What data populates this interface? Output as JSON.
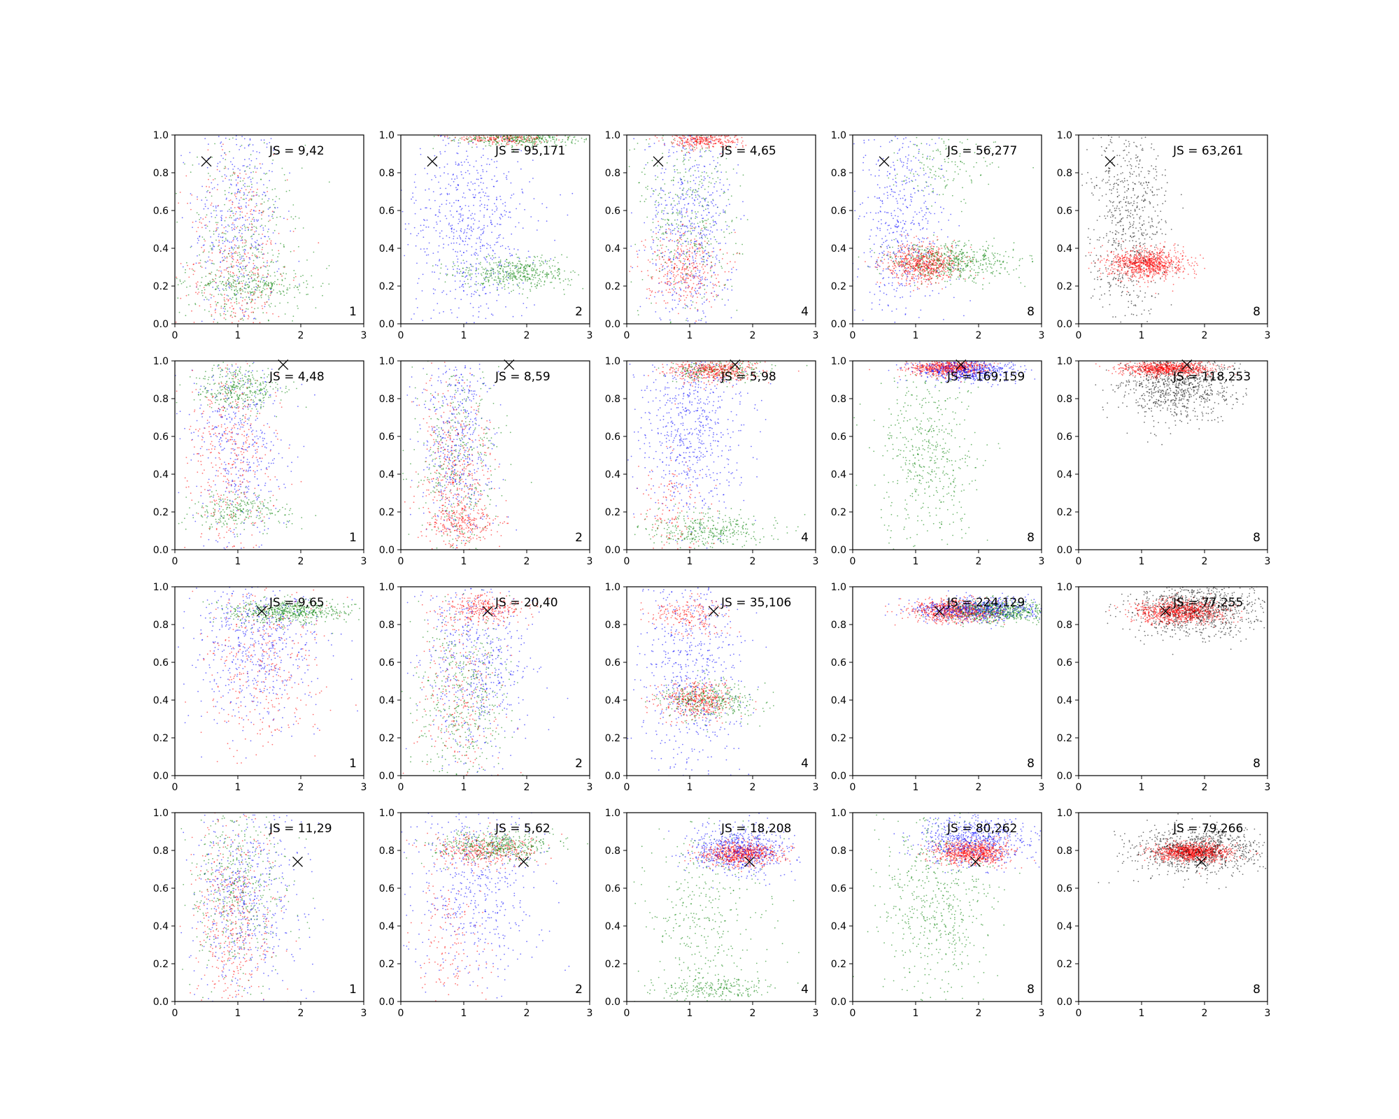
{
  "colors": {
    "blue": "#0000ff",
    "green": "#008000",
    "red": "#ff0000",
    "black": "#000000"
  },
  "chart_data": {
    "type": "scatter",
    "grid": false,
    "layout": "4 rows x 5 columns of scatter panels",
    "xlim": [
      0,
      3
    ],
    "ylim": [
      0,
      1
    ],
    "x_ticks": [
      "0",
      "1",
      "2",
      "3"
    ],
    "y_ticks": [
      "0.0",
      "0.2",
      "0.4",
      "0.6",
      "0.8",
      "1.0"
    ],
    "panels": [
      {
        "row": 1,
        "col": 1,
        "label": "1",
        "js": "JS = 9,42",
        "marker": [
          0.5,
          0.86
        ],
        "series_colors": [
          "blue",
          "green",
          "red"
        ],
        "clusters": [
          {
            "color": "blue",
            "cx": 1.0,
            "cy": 0.55,
            "sx": 0.35,
            "sy": 0.3,
            "n": 420
          },
          {
            "color": "green",
            "cx": 1.1,
            "cy": 0.35,
            "sx": 0.45,
            "sy": 0.3,
            "n": 420
          },
          {
            "color": "red",
            "cx": 1.0,
            "cy": 0.3,
            "sx": 0.4,
            "sy": 0.3,
            "n": 420
          },
          {
            "color": "green",
            "cx": 1.2,
            "cy": 0.2,
            "sx": 0.5,
            "sy": 0.04,
            "n": 250
          }
        ]
      },
      {
        "row": 1,
        "col": 2,
        "label": "2",
        "js": "JS = 95,171",
        "marker": [
          0.5,
          0.86
        ],
        "series_colors": [
          "blue",
          "green",
          "red"
        ],
        "clusters": [
          {
            "color": "blue",
            "cx": 1.1,
            "cy": 0.5,
            "sx": 0.5,
            "sy": 0.3,
            "n": 700
          },
          {
            "color": "green",
            "cx": 1.8,
            "cy": 0.27,
            "sx": 0.45,
            "sy": 0.04,
            "n": 450
          },
          {
            "color": "green",
            "cx": 1.9,
            "cy": 0.98,
            "sx": 0.45,
            "sy": 0.02,
            "n": 350
          },
          {
            "color": "red",
            "cx": 1.6,
            "cy": 0.98,
            "sx": 0.4,
            "sy": 0.015,
            "n": 200
          }
        ]
      },
      {
        "row": 1,
        "col": 3,
        "label": "4",
        "js": "JS = 4,65",
        "marker": [
          0.5,
          0.86
        ],
        "series_colors": [
          "blue",
          "green",
          "red"
        ],
        "clusters": [
          {
            "color": "blue",
            "cx": 1.0,
            "cy": 0.5,
            "sx": 0.35,
            "sy": 0.3,
            "n": 600
          },
          {
            "color": "green",
            "cx": 1.0,
            "cy": 0.6,
            "sx": 0.4,
            "sy": 0.3,
            "n": 400
          },
          {
            "color": "red",
            "cx": 0.9,
            "cy": 0.3,
            "sx": 0.3,
            "sy": 0.1,
            "n": 350
          },
          {
            "color": "red",
            "cx": 1.2,
            "cy": 0.97,
            "sx": 0.3,
            "sy": 0.02,
            "n": 300
          }
        ]
      },
      {
        "row": 1,
        "col": 4,
        "label": "8",
        "js": "JS = 56,277",
        "marker": [
          0.5,
          0.86
        ],
        "series_colors": [
          "blue",
          "green",
          "red"
        ],
        "clusters": [
          {
            "color": "blue",
            "cx": 0.8,
            "cy": 0.55,
            "sx": 0.35,
            "sy": 0.3,
            "n": 550
          },
          {
            "color": "green",
            "cx": 1.6,
            "cy": 0.33,
            "sx": 0.5,
            "sy": 0.05,
            "n": 550
          },
          {
            "color": "green",
            "cx": 1.5,
            "cy": 0.85,
            "sx": 0.4,
            "sy": 0.1,
            "n": 150
          },
          {
            "color": "red",
            "cx": 1.1,
            "cy": 0.32,
            "sx": 0.3,
            "sy": 0.05,
            "n": 650
          }
        ]
      },
      {
        "row": 1,
        "col": 5,
        "label": "8",
        "js": "JS = 63,261",
        "marker": [
          0.5,
          0.86
        ],
        "series_colors": [
          "black",
          "red"
        ],
        "clusters": [
          {
            "color": "black",
            "cx": 0.8,
            "cy": 0.55,
            "sx": 0.3,
            "sy": 0.3,
            "n": 700
          },
          {
            "color": "red",
            "cx": 1.1,
            "cy": 0.32,
            "sx": 0.3,
            "sy": 0.04,
            "n": 900
          }
        ]
      },
      {
        "row": 2,
        "col": 1,
        "label": "1",
        "js": "JS = 4,48",
        "marker": [
          1.72,
          0.98
        ],
        "series_colors": [
          "blue",
          "green",
          "red"
        ],
        "clusters": [
          {
            "color": "blue",
            "cx": 1.0,
            "cy": 0.55,
            "sx": 0.4,
            "sy": 0.3,
            "n": 450
          },
          {
            "color": "green",
            "cx": 1.0,
            "cy": 0.85,
            "sx": 0.35,
            "sy": 0.06,
            "n": 350
          },
          {
            "color": "green",
            "cx": 1.0,
            "cy": 0.2,
            "sx": 0.4,
            "sy": 0.05,
            "n": 250
          },
          {
            "color": "red",
            "cx": 0.9,
            "cy": 0.5,
            "sx": 0.35,
            "sy": 0.3,
            "n": 400
          }
        ]
      },
      {
        "row": 2,
        "col": 2,
        "label": "2",
        "js": "JS = 8,59",
        "marker": [
          1.72,
          0.98
        ],
        "series_colors": [
          "blue",
          "green",
          "red"
        ],
        "clusters": [
          {
            "color": "blue",
            "cx": 0.9,
            "cy": 0.55,
            "sx": 0.3,
            "sy": 0.3,
            "n": 500
          },
          {
            "color": "green",
            "cx": 0.9,
            "cy": 0.45,
            "sx": 0.35,
            "sy": 0.3,
            "n": 400
          },
          {
            "color": "red",
            "cx": 0.9,
            "cy": 0.35,
            "sx": 0.3,
            "sy": 0.25,
            "n": 450
          },
          {
            "color": "red",
            "cx": 1.0,
            "cy": 0.15,
            "sx": 0.3,
            "sy": 0.05,
            "n": 200
          }
        ]
      },
      {
        "row": 2,
        "col": 3,
        "label": "4",
        "js": "JS = 5,98",
        "marker": [
          1.72,
          0.98
        ],
        "series_colors": [
          "blue",
          "green",
          "red"
        ],
        "clusters": [
          {
            "color": "blue",
            "cx": 1.0,
            "cy": 0.65,
            "sx": 0.4,
            "sy": 0.25,
            "n": 700
          },
          {
            "color": "green",
            "cx": 1.3,
            "cy": 0.1,
            "sx": 0.5,
            "sy": 0.05,
            "n": 350
          },
          {
            "color": "green",
            "cx": 1.4,
            "cy": 0.95,
            "sx": 0.4,
            "sy": 0.03,
            "n": 200
          },
          {
            "color": "red",
            "cx": 1.4,
            "cy": 0.95,
            "sx": 0.35,
            "sy": 0.03,
            "n": 500
          },
          {
            "color": "red",
            "cx": 0.7,
            "cy": 0.2,
            "sx": 0.3,
            "sy": 0.15,
            "n": 150
          }
        ]
      },
      {
        "row": 2,
        "col": 4,
        "label": "8",
        "js": "JS = 169,159",
        "marker": [
          1.72,
          0.98
        ],
        "series_colors": [
          "blue",
          "green",
          "red"
        ],
        "clusters": [
          {
            "color": "blue",
            "cx": 1.8,
            "cy": 0.95,
            "sx": 0.4,
            "sy": 0.03,
            "n": 600
          },
          {
            "color": "green",
            "cx": 1.2,
            "cy": 0.5,
            "sx": 0.4,
            "sy": 0.25,
            "n": 500
          },
          {
            "color": "red",
            "cx": 1.5,
            "cy": 0.96,
            "sx": 0.3,
            "sy": 0.02,
            "n": 600
          }
        ]
      },
      {
        "row": 2,
        "col": 5,
        "label": "8",
        "js": "JS = 118,253",
        "marker": [
          1.72,
          0.98
        ],
        "series_colors": [
          "black",
          "red"
        ],
        "clusters": [
          {
            "color": "black",
            "cx": 1.6,
            "cy": 0.88,
            "sx": 0.45,
            "sy": 0.1,
            "n": 900
          },
          {
            "color": "red",
            "cx": 1.4,
            "cy": 0.96,
            "sx": 0.35,
            "sy": 0.02,
            "n": 800
          }
        ]
      },
      {
        "row": 3,
        "col": 1,
        "label": "1",
        "js": "JS = 9,65",
        "marker": [
          1.38,
          0.87
        ],
        "series_colors": [
          "blue",
          "green",
          "red"
        ],
        "clusters": [
          {
            "color": "blue",
            "cx": 1.3,
            "cy": 0.7,
            "sx": 0.5,
            "sy": 0.2,
            "n": 600
          },
          {
            "color": "green",
            "cx": 1.8,
            "cy": 0.87,
            "sx": 0.45,
            "sy": 0.03,
            "n": 550
          },
          {
            "color": "red",
            "cx": 1.4,
            "cy": 0.6,
            "sx": 0.5,
            "sy": 0.25,
            "n": 350
          }
        ]
      },
      {
        "row": 3,
        "col": 2,
        "label": "2",
        "js": "JS = 20,40",
        "marker": [
          1.38,
          0.87
        ],
        "series_colors": [
          "blue",
          "green",
          "red"
        ],
        "clusters": [
          {
            "color": "blue",
            "cx": 1.2,
            "cy": 0.6,
            "sx": 0.45,
            "sy": 0.25,
            "n": 550
          },
          {
            "color": "green",
            "cx": 1.0,
            "cy": 0.4,
            "sx": 0.4,
            "sy": 0.25,
            "n": 450
          },
          {
            "color": "red",
            "cx": 1.3,
            "cy": 0.88,
            "sx": 0.35,
            "sy": 0.04,
            "n": 300
          },
          {
            "color": "red",
            "cx": 0.9,
            "cy": 0.4,
            "sx": 0.35,
            "sy": 0.25,
            "n": 250
          }
        ]
      },
      {
        "row": 3,
        "col": 3,
        "label": "4",
        "js": "JS = 35,106",
        "marker": [
          1.38,
          0.87
        ],
        "series_colors": [
          "blue",
          "green",
          "red"
        ],
        "clusters": [
          {
            "color": "blue",
            "cx": 1.0,
            "cy": 0.6,
            "sx": 0.4,
            "sy": 0.3,
            "n": 600
          },
          {
            "color": "green",
            "cx": 1.3,
            "cy": 0.4,
            "sx": 0.4,
            "sy": 0.05,
            "n": 350
          },
          {
            "color": "red",
            "cx": 1.1,
            "cy": 0.4,
            "sx": 0.3,
            "sy": 0.05,
            "n": 400
          },
          {
            "color": "red",
            "cx": 1.0,
            "cy": 0.85,
            "sx": 0.3,
            "sy": 0.05,
            "n": 200
          }
        ]
      },
      {
        "row": 3,
        "col": 4,
        "label": "8",
        "js": "JS = 224,129",
        "marker": [
          1.38,
          0.87
        ],
        "series_colors": [
          "blue",
          "green",
          "red"
        ],
        "clusters": [
          {
            "color": "blue",
            "cx": 2.0,
            "cy": 0.88,
            "sx": 0.5,
            "sy": 0.03,
            "n": 700
          },
          {
            "color": "green",
            "cx": 2.3,
            "cy": 0.87,
            "sx": 0.45,
            "sy": 0.03,
            "n": 600
          },
          {
            "color": "red",
            "cx": 1.6,
            "cy": 0.87,
            "sx": 0.35,
            "sy": 0.03,
            "n": 650
          }
        ]
      },
      {
        "row": 3,
        "col": 5,
        "label": "8",
        "js": "JS = 77,255",
        "marker": [
          1.38,
          0.87
        ],
        "series_colors": [
          "black",
          "red"
        ],
        "clusters": [
          {
            "color": "black",
            "cx": 1.9,
            "cy": 0.88,
            "sx": 0.5,
            "sy": 0.07,
            "n": 900
          },
          {
            "color": "red",
            "cx": 1.6,
            "cy": 0.87,
            "sx": 0.35,
            "sy": 0.03,
            "n": 900
          }
        ]
      },
      {
        "row": 4,
        "col": 1,
        "label": "1",
        "js": "JS = 11,29",
        "marker": [
          1.95,
          0.74
        ],
        "series_colors": [
          "blue",
          "green",
          "red"
        ],
        "clusters": [
          {
            "color": "blue",
            "cx": 1.1,
            "cy": 0.55,
            "sx": 0.45,
            "sy": 0.25,
            "n": 550
          },
          {
            "color": "green",
            "cx": 1.0,
            "cy": 0.6,
            "sx": 0.4,
            "sy": 0.25,
            "n": 450
          },
          {
            "color": "red",
            "cx": 0.9,
            "cy": 0.4,
            "sx": 0.35,
            "sy": 0.3,
            "n": 450
          }
        ]
      },
      {
        "row": 4,
        "col": 2,
        "label": "2",
        "js": "JS = 5,62",
        "marker": [
          1.95,
          0.74
        ],
        "series_colors": [
          "blue",
          "green",
          "red"
        ],
        "clusters": [
          {
            "color": "blue",
            "cx": 1.2,
            "cy": 0.6,
            "sx": 0.5,
            "sy": 0.25,
            "n": 550
          },
          {
            "color": "green",
            "cx": 1.5,
            "cy": 0.82,
            "sx": 0.45,
            "sy": 0.04,
            "n": 450
          },
          {
            "color": "red",
            "cx": 1.3,
            "cy": 0.8,
            "sx": 0.4,
            "sy": 0.04,
            "n": 350
          },
          {
            "color": "red",
            "cx": 0.8,
            "cy": 0.3,
            "sx": 0.3,
            "sy": 0.2,
            "n": 150
          }
        ]
      },
      {
        "row": 4,
        "col": 3,
        "label": "4",
        "js": "JS = 18,208",
        "marker": [
          1.95,
          0.74
        ],
        "series_colors": [
          "blue",
          "green",
          "red"
        ],
        "clusters": [
          {
            "color": "blue",
            "cx": 1.8,
            "cy": 0.8,
            "sx": 0.4,
            "sy": 0.06,
            "n": 650
          },
          {
            "color": "green",
            "cx": 1.2,
            "cy": 0.4,
            "sx": 0.5,
            "sy": 0.3,
            "n": 400
          },
          {
            "color": "green",
            "cx": 1.4,
            "cy": 0.07,
            "sx": 0.45,
            "sy": 0.03,
            "n": 200
          },
          {
            "color": "red",
            "cx": 1.8,
            "cy": 0.78,
            "sx": 0.3,
            "sy": 0.03,
            "n": 650
          }
        ]
      },
      {
        "row": 4,
        "col": 4,
        "label": "8",
        "js": "JS = 80,262",
        "marker": [
          1.95,
          0.74
        ],
        "series_colors": [
          "blue",
          "green",
          "red"
        ],
        "clusters": [
          {
            "color": "blue",
            "cx": 1.9,
            "cy": 0.85,
            "sx": 0.45,
            "sy": 0.06,
            "n": 650
          },
          {
            "color": "green",
            "cx": 1.3,
            "cy": 0.5,
            "sx": 0.45,
            "sy": 0.25,
            "n": 550
          },
          {
            "color": "red",
            "cx": 1.9,
            "cy": 0.79,
            "sx": 0.3,
            "sy": 0.03,
            "n": 750
          }
        ]
      },
      {
        "row": 4,
        "col": 5,
        "label": "8",
        "js": "JS = 79,266",
        "marker": [
          1.95,
          0.74
        ],
        "series_colors": [
          "black",
          "red"
        ],
        "clusters": [
          {
            "color": "black",
            "cx": 1.9,
            "cy": 0.8,
            "sx": 0.5,
            "sy": 0.06,
            "n": 900
          },
          {
            "color": "red",
            "cx": 1.8,
            "cy": 0.79,
            "sx": 0.3,
            "sy": 0.025,
            "n": 1000
          }
        ]
      }
    ]
  }
}
